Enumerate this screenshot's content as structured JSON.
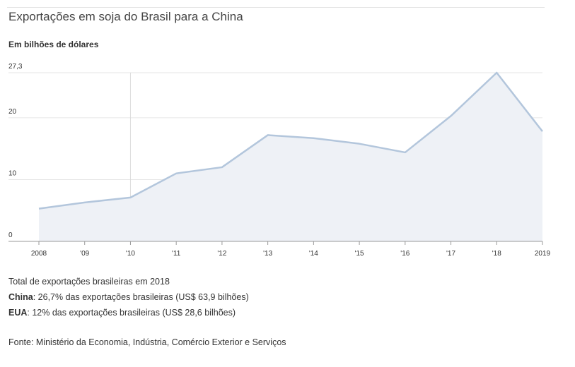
{
  "header": {
    "title": "Exportações em soja do Brasil para a China",
    "subtitle": "Em bilhões de dólares"
  },
  "chart_data": {
    "type": "area",
    "title": "Exportações em soja do Brasil para a China",
    "subtitle": "Em bilhões de dólares",
    "xlabel": "",
    "ylabel": "",
    "x": [
      "2008",
      "'09",
      "'10",
      "'11",
      "'12",
      "'13",
      "'14",
      "'15",
      "'16",
      "'17",
      "'18",
      "2019"
    ],
    "values": [
      5.3,
      6.3,
      7.1,
      11.0,
      12.0,
      17.2,
      16.7,
      15.8,
      14.4,
      20.3,
      27.3,
      17.8
    ],
    "y_ticks": [
      "0",
      "10",
      "20",
      "27,3"
    ],
    "ylim": [
      0,
      27.3
    ],
    "grid": true,
    "line_color": "#b3c6dc",
    "fill_color": "#eef1f6"
  },
  "notes": {
    "heading": "Total de exportações brasileiras em 2018",
    "china_label": "China",
    "china_text": ": 26,7% das exportações brasileiras (US$ 63,9 bilhões)",
    "eua_label": "EUA",
    "eua_text": ": 12% das exportações brasileiras (US$ 28,6 bilhões)"
  },
  "source": "Fonte: Ministério da Economia, Indústria, Comércio Exterior e Serviços"
}
